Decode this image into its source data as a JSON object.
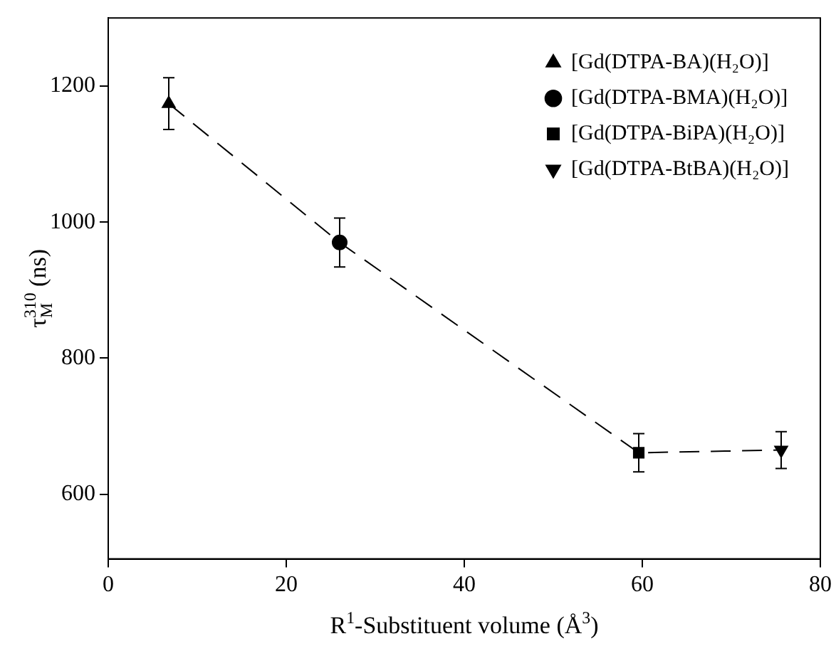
{
  "chart_data": {
    "type": "scatter",
    "xlabel": "R$^{1}$-Substituent volume (Å$^{3}$)",
    "ylabel": "τ$_{M}$$^{310}$ (ns)",
    "xlim": [
      0,
      80
    ],
    "xticks": [
      0,
      20,
      40,
      60,
      80
    ],
    "ylim": [
      505,
      1300
    ],
    "yticks": [
      600,
      800,
      1000,
      1200
    ],
    "grid": false,
    "legend": "top right",
    "series": [
      {
        "type": "line",
        "color": "#000000",
        "x": [
          6.8,
          26,
          59.6,
          75.6
        ],
        "values": [
          1174,
          970,
          661,
          665
        ],
        "line_style": "dashed",
        "marker": "none"
      },
      {
        "name": "[Gd(DTPA-BA)(H₂O)]",
        "color": "#000000",
        "x": [
          6.8
        ],
        "values": [
          1174
        ],
        "errors": [
          38
        ],
        "marker": "triangle"
      },
      {
        "name": "[Gd(DTPA-BMA)(H₂O)]",
        "color": "#000000",
        "x": [
          26
        ],
        "values": [
          970
        ],
        "errors": [
          36
        ],
        "marker": "circle"
      },
      {
        "name": "[Gd(DTPA-BiPA)(H₂O)]",
        "color": "#000000",
        "x": [
          59.6
        ],
        "values": [
          661
        ],
        "errors": [
          28
        ],
        "marker": "square"
      },
      {
        "name": "[Gd(DTPA-BtBA)(H₂O)]",
        "color": "#000000",
        "x": [
          75.6
        ],
        "values": [
          665
        ],
        "errors": [
          27
        ],
        "marker": "triangle-down"
      }
    ]
  }
}
